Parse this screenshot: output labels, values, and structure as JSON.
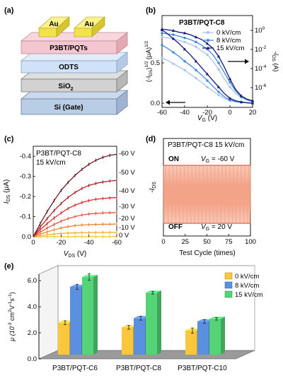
{
  "panel_labels": {
    "a": "(a)",
    "b": "(b)",
    "c": "(c)",
    "d": "(d)",
    "e": "(e)"
  },
  "device": {
    "electrodes": [
      "Au",
      "Au"
    ],
    "layers": [
      "P3BT/PQTs",
      "ODTS",
      "SiO",
      "Si (Gate)"
    ],
    "sio2_subscript": "2",
    "colors": {
      "gold": "#f2e34a",
      "p3bt": "#f4c6cf",
      "odts": "#cfe2f7",
      "sio2": "#d2d2d2",
      "si": "#b9cde6"
    }
  },
  "chart_data": [
    {
      "id": "b",
      "type": "line",
      "title": "P3BT/PQT-C8",
      "xlabel": "V",
      "xlabel_sub": "G",
      "xlabel_unit": " (V)",
      "ylabel": "(-I",
      "ylabel_sub": "DS",
      "ylabel_tail": ")",
      "ylabel_sup1": "1/2",
      "ylabel_unit": " (μA)",
      "ylabel_sup2": "1/2",
      "y2label": "-I",
      "y2label_sub": "DS",
      "y2label_unit": " (A)",
      "xlim": [
        -60,
        20
      ],
      "ylim": [
        0,
        1.0
      ],
      "x_ticks": [
        "-60",
        "-40",
        "-20",
        "0",
        "20"
      ],
      "y_ticks": [
        "0.0",
        "0.5"
      ],
      "y2_ticks": [
        {
          "base": "10",
          "exp": "0"
        },
        {
          "base": "10",
          "exp": "-2"
        },
        {
          "base": "10",
          "exp": "-4"
        },
        {
          "base": "10",
          "exp": "-6"
        }
      ],
      "x": [
        -60,
        -55,
        -50,
        -45,
        -40,
        -35,
        -30,
        -25,
        -20,
        -15,
        -10,
        -5,
        0,
        5,
        10,
        15,
        20
      ],
      "series": [
        {
          "name": "0 kV/cm",
          "color": "#a9c3ea",
          "marker": "circle",
          "sqrt": [
            0.56,
            0.53,
            0.49,
            0.45,
            0.41,
            0.36,
            0.31,
            0.26,
            0.2,
            0.15,
            0.1,
            0.06,
            0.03,
            0.015,
            0.01,
            0.005,
            0.0
          ],
          "log": [
            0.82,
            0.81,
            0.8,
            0.78,
            0.76,
            0.73,
            0.7,
            0.65,
            0.6,
            0.52,
            0.42,
            0.3,
            0.2,
            0.12,
            0.07,
            0.04,
            0.02
          ]
        },
        {
          "name": "8 kV/cm",
          "color": "#3d8ad8",
          "marker": "circle",
          "sqrt": [
            0.72,
            0.68,
            0.63,
            0.58,
            0.52,
            0.47,
            0.41,
            0.35,
            0.28,
            0.21,
            0.14,
            0.08,
            0.04,
            0.02,
            0.01,
            0.005,
            0.0
          ],
          "log": [
            0.87,
            0.86,
            0.85,
            0.83,
            0.81,
            0.79,
            0.76,
            0.72,
            0.67,
            0.6,
            0.5,
            0.38,
            0.26,
            0.15,
            0.08,
            0.04,
            0.02
          ]
        },
        {
          "name": "15 kV/cm",
          "color": "#16187a",
          "marker": "triangle",
          "sqrt": [
            0.91,
            0.86,
            0.8,
            0.74,
            0.67,
            0.6,
            0.52,
            0.44,
            0.36,
            0.28,
            0.2,
            0.12,
            0.06,
            0.03,
            0.015,
            0.005,
            0.0
          ],
          "log": [
            0.92,
            0.91,
            0.9,
            0.88,
            0.87,
            0.85,
            0.82,
            0.79,
            0.74,
            0.68,
            0.58,
            0.45,
            0.3,
            0.17,
            0.09,
            0.05,
            0.03
          ]
        }
      ]
    },
    {
      "id": "c",
      "type": "line",
      "title": "P3BT/PQT-C8",
      "subtitle": "15 kV/cm",
      "xlabel": "V",
      "xlabel_sub": "DS",
      "xlabel_unit": " (V)",
      "ylabel": "I",
      "ylabel_sub": "DS",
      "ylabel_unit": " (μA)",
      "xlim": [
        0,
        -60
      ],
      "ylim": [
        0,
        -0.45
      ],
      "x_ticks": [
        "0",
        "-20",
        "-40",
        "-60"
      ],
      "y_ticks": [
        "0.0",
        "-0.1",
        "-0.2",
        "-0.3",
        "-0.4"
      ],
      "x": [
        0,
        -5,
        -10,
        -15,
        -20,
        -25,
        -30,
        -35,
        -40,
        -45,
        -50,
        -55,
        -60
      ],
      "series": [
        {
          "label": "-60 V",
          "color": "#5a0d10",
          "values": [
            0,
            -0.065,
            -0.125,
            -0.18,
            -0.23,
            -0.27,
            -0.305,
            -0.335,
            -0.36,
            -0.38,
            -0.395,
            -0.405,
            -0.41
          ]
        },
        {
          "label": "-50 V",
          "color": "#a3141b",
          "values": [
            0,
            -0.048,
            -0.09,
            -0.13,
            -0.165,
            -0.195,
            -0.22,
            -0.24,
            -0.255,
            -0.265,
            -0.272,
            -0.277,
            -0.28
          ]
        },
        {
          "label": "-40 V",
          "color": "#d11f24",
          "values": [
            0,
            -0.035,
            -0.065,
            -0.093,
            -0.118,
            -0.14,
            -0.157,
            -0.17,
            -0.18,
            -0.186,
            -0.19,
            -0.193,
            -0.195
          ]
        },
        {
          "label": "-30 V",
          "color": "#e54630",
          "values": [
            0,
            -0.023,
            -0.043,
            -0.061,
            -0.077,
            -0.09,
            -0.1,
            -0.108,
            -0.113,
            -0.116,
            -0.118,
            -0.119,
            -0.12
          ]
        },
        {
          "label": "-20 V",
          "color": "#ee7a2a",
          "values": [
            0,
            -0.013,
            -0.024,
            -0.034,
            -0.043,
            -0.05,
            -0.055,
            -0.058,
            -0.06,
            -0.061,
            -0.062,
            -0.062,
            -0.063
          ]
        },
        {
          "label": "-10 V",
          "color": "#f5a623",
          "values": [
            0,
            -0.005,
            -0.009,
            -0.013,
            -0.016,
            -0.018,
            -0.019,
            -0.02,
            -0.02,
            -0.021,
            -0.021,
            -0.021,
            -0.021
          ]
        },
        {
          "label": "0 V",
          "color": "#f7c51e",
          "values": [
            0,
            0,
            0,
            0,
            0,
            0,
            0,
            0,
            0,
            0,
            0,
            0,
            0
          ]
        }
      ]
    },
    {
      "id": "d",
      "type": "line",
      "title": "P3BT/PQT-C8 15 kV/cm",
      "xlabel": "Test Cycle (times)",
      "ylabel": "-I",
      "ylabel_sub": "DS",
      "xlim": [
        0,
        100
      ],
      "x_ticks": [
        "0",
        "25",
        "50",
        "75",
        "100"
      ],
      "on_label": "ON",
      "off_label": "OFF",
      "on_condition": {
        "v": "V",
        "sub": "G",
        "rest": " = -60 V"
      },
      "off_condition": {
        "v": "V",
        "sub": "G",
        "rest": " = 20 V"
      },
      "cycles": 100,
      "color": "#f2997a"
    },
    {
      "id": "e",
      "type": "bar",
      "ylabel": "μ (10",
      "ylabel_sup1": "-3",
      "ylabel_mid": " cm",
      "ylabel_sup2": "2",
      "ylabel_mid2": "V",
      "ylabel_sup3": "-1",
      "ylabel_mid3": "s",
      "ylabel_sup4": "-1",
      "ylabel_end": ")",
      "ylim": [
        0,
        6.5
      ],
      "y_ticks": [
        "0.0",
        "2.0",
        "4.0",
        "6.0"
      ],
      "categories": [
        "P3BT/PQT-C6",
        "P3BT/PQT-C8",
        "P3BT/PQT-C10"
      ],
      "series": [
        {
          "name": "0 kV/cm",
          "color": "#f9c73b",
          "values": [
            2.45,
            2.1,
            1.85
          ],
          "err": [
            0.15,
            0.15,
            0.2
          ]
        },
        {
          "name": "8 kV/cm",
          "color": "#5b8fe0",
          "values": [
            5.2,
            2.8,
            2.55
          ],
          "err": [
            0.2,
            0.15,
            0.15
          ]
        },
        {
          "name": "15 kV/cm",
          "color": "#55d377",
          "values": [
            5.95,
            4.75,
            2.75
          ],
          "err": [
            0.25,
            0.1,
            0.1
          ]
        }
      ]
    }
  ]
}
